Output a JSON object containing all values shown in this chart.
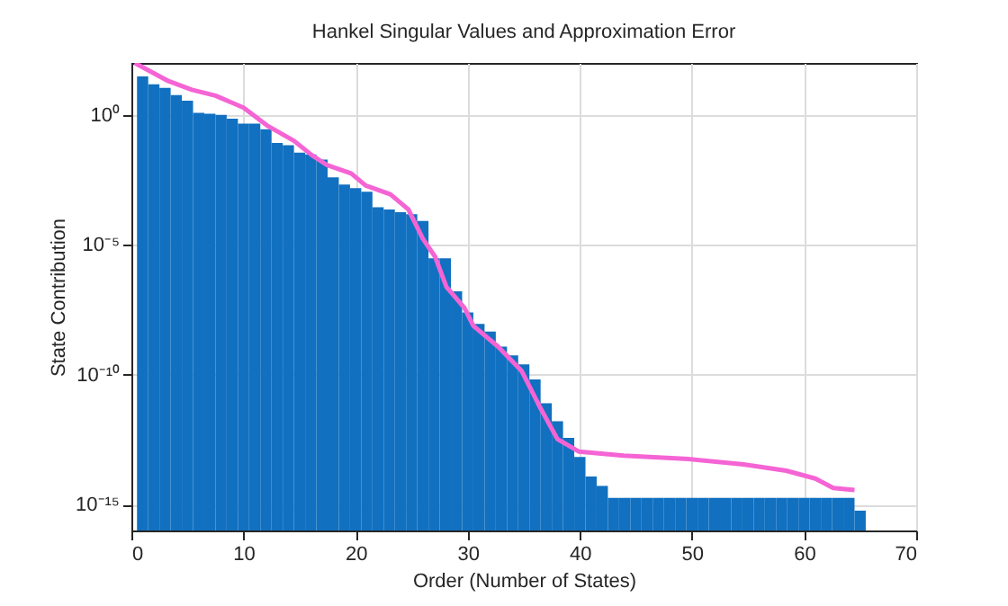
{
  "chart_data": {
    "type": "bar",
    "title": "Hankel Singular Values and Approximation Error",
    "xlabel": "Order (Number of States)",
    "ylabel": "State Contribution",
    "log": "y",
    "grid": true,
    "xlim": [
      0,
      70
    ],
    "xticks": [
      0,
      10,
      20,
      30,
      40,
      50,
      60,
      70
    ],
    "ylim": [
      1e-16,
      100
    ],
    "yticks": [
      {
        "value": 1e-15,
        "label": "10⁻¹⁵"
      },
      {
        "value": 1e-10,
        "label": "10⁻¹⁰"
      },
      {
        "value": 1e-05,
        "label": "10⁻⁵"
      },
      {
        "value": 1,
        "label": "10⁰"
      }
    ],
    "series": [
      {
        "color": "#1170c0",
        "x": [
          1,
          2,
          3,
          4,
          5,
          6,
          7,
          8,
          9,
          10,
          11,
          12,
          13,
          14,
          15,
          16,
          17,
          18,
          19,
          20,
          21,
          22,
          23,
          24,
          25,
          26,
          27,
          28,
          29,
          30,
          31,
          32,
          33,
          34,
          35,
          36,
          37,
          38,
          39,
          40,
          41,
          42,
          43,
          44,
          45,
          46,
          47,
          48,
          49,
          50,
          51,
          52,
          53,
          54,
          55,
          56,
          57,
          58,
          59,
          60,
          61,
          62,
          63,
          64,
          65
        ],
        "values": [
          30,
          15,
          11,
          5.8,
          3.5,
          1.2,
          1.1,
          1.0,
          0.72,
          0.46,
          0.46,
          0.28,
          0.083,
          0.068,
          0.035,
          0.03,
          0.019,
          0.0039,
          0.0021,
          0.0015,
          0.0011,
          0.00028,
          0.00023,
          0.00018,
          0.00015,
          8.3e-05,
          3e-06,
          3e-06,
          1.6e-07,
          2.5e-08,
          8.9e-09,
          4.6e-09,
          1.2e-09,
          5.5e-10,
          2.5e-10,
          6.6e-11,
          7.9e-12,
          1.6e-12,
          3.7e-13,
          6.8e-14,
          1.2e-14,
          5.2e-15,
          1.8e-15,
          1.8e-15,
          1.8e-15,
          1.8e-15,
          1.8e-15,
          1.8e-15,
          1.8e-15,
          1.8e-15,
          1.8e-15,
          1.8e-15,
          1.8e-15,
          1.8e-15,
          1.8e-15,
          1.8e-15,
          1.8e-15,
          1.8e-15,
          1.8e-15,
          1.8e-15,
          1.8e-15,
          1.8e-15,
          1.8e-15,
          1.8e-15,
          5.8e-16
        ]
      },
      {
        "type": "line",
        "color": "#f564d4",
        "x": [
          0.3,
          3.3,
          5.4,
          7.5,
          10,
          12.1,
          14.5,
          16.1,
          17.4,
          19.6,
          20.9,
          23.1,
          24.7,
          26,
          27.1,
          28.1,
          29.7,
          30.5,
          32.7,
          34.8,
          36.4,
          38,
          39.9,
          43.9,
          49.3,
          54.6,
          58.4,
          61,
          62.6,
          64.5
        ],
        "values": [
          100,
          20,
          9.3,
          5.5,
          1.9,
          0.39,
          0.1,
          0.028,
          0.012,
          0.0056,
          0.0019,
          0.00087,
          0.00023,
          1.7e-05,
          3.4e-06,
          2.4e-07,
          3.7e-08,
          7.6e-09,
          1.2e-09,
          1.4e-10,
          6e-12,
          3.3e-13,
          1.1e-13,
          7.6e-14,
          5.8e-14,
          3.5e-14,
          2e-14,
          1e-14,
          4.3e-15,
          3.6e-15
        ]
      }
    ]
  }
}
